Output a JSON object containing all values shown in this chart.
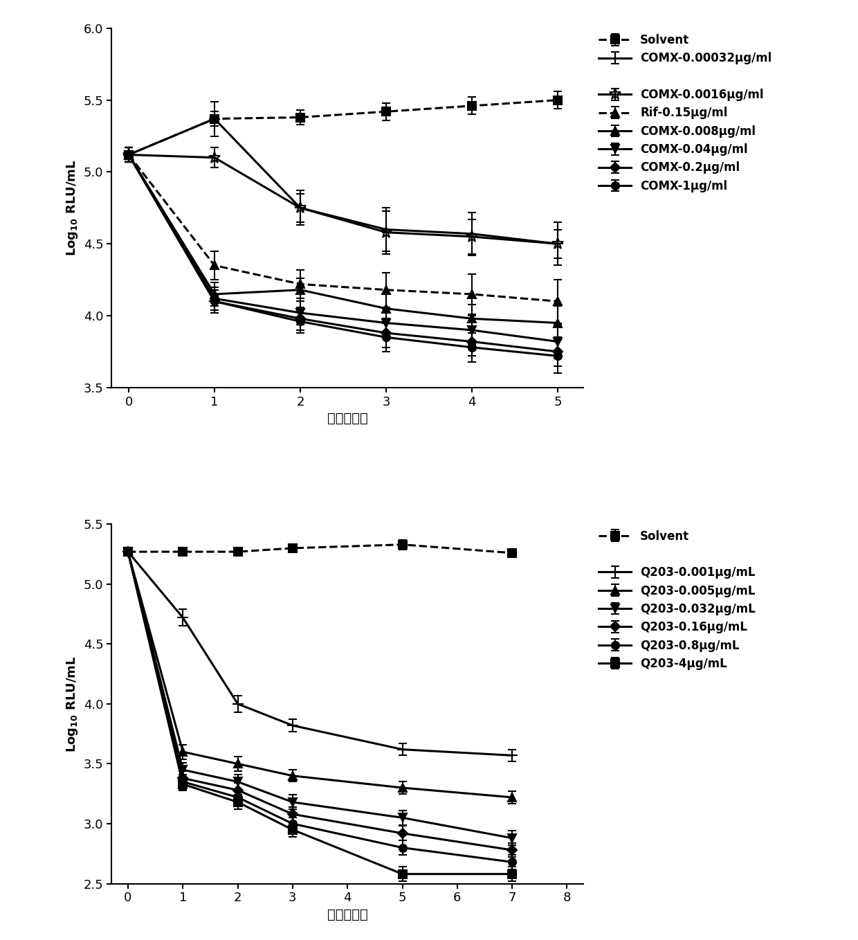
{
  "top": {
    "xlabel": "时间（天）",
    "xlim": [
      -0.2,
      5.3
    ],
    "ylim": [
      3.5,
      6.0
    ],
    "xticks": [
      0,
      1,
      2,
      3,
      4,
      5
    ],
    "yticks": [
      3.5,
      4.0,
      4.5,
      5.0,
      5.5,
      6.0
    ],
    "series": [
      {
        "label": "Solvent",
        "x": [
          0,
          1,
          2,
          3,
          4,
          5
        ],
        "y": [
          5.12,
          5.37,
          5.38,
          5.42,
          5.46,
          5.5
        ],
        "yerr": [
          0.05,
          0.05,
          0.05,
          0.06,
          0.06,
          0.06
        ],
        "marker": "s",
        "linestyle": "--",
        "markersize": 9,
        "linewidth": 2.2,
        "group": 1
      },
      {
        "label": "COMX-0.00032μg/ml",
        "x": [
          0,
          1,
          2,
          3,
          4,
          5
        ],
        "y": [
          5.12,
          5.37,
          4.75,
          4.6,
          4.57,
          4.5
        ],
        "yerr": [
          0.05,
          0.12,
          0.12,
          0.15,
          0.15,
          0.15
        ],
        "marker": "+",
        "linestyle": "-",
        "markersize": 12,
        "linewidth": 2.2,
        "group": 1
      },
      {
        "label": "COMX-0.0016μg/ml",
        "x": [
          0,
          1,
          2,
          3,
          4,
          5
        ],
        "y": [
          5.12,
          5.1,
          4.75,
          4.58,
          4.55,
          4.5
        ],
        "yerr": [
          0.05,
          0.07,
          0.1,
          0.15,
          0.12,
          0.1
        ],
        "marker": "*",
        "linestyle": "-",
        "markersize": 12,
        "linewidth": 2.2,
        "group": 2
      },
      {
        "label": "Rif-0.15μg/ml",
        "x": [
          0,
          1,
          2,
          3,
          4,
          5
        ],
        "y": [
          5.12,
          4.35,
          4.22,
          4.18,
          4.15,
          4.1
        ],
        "yerr": [
          0.05,
          0.1,
          0.1,
          0.12,
          0.14,
          0.15
        ],
        "marker": "^",
        "linestyle": "--",
        "markersize": 9,
        "linewidth": 2.2,
        "group": 2
      },
      {
        "label": "COMX-0.008μg/ml",
        "x": [
          0,
          1,
          2,
          3,
          4,
          5
        ],
        "y": [
          5.12,
          4.15,
          4.18,
          4.05,
          3.98,
          3.95
        ],
        "yerr": [
          0.05,
          0.08,
          0.08,
          0.1,
          0.1,
          0.12
        ],
        "marker": "^",
        "linestyle": "-",
        "markersize": 9,
        "linewidth": 2.2,
        "group": 2
      },
      {
        "label": "COMX-0.04μg/ml",
        "x": [
          0,
          1,
          2,
          3,
          4,
          5
        ],
        "y": [
          5.12,
          4.12,
          4.02,
          3.95,
          3.9,
          3.82
        ],
        "yerr": [
          0.05,
          0.08,
          0.08,
          0.1,
          0.1,
          0.12
        ],
        "marker": "v",
        "linestyle": "-",
        "markersize": 9,
        "linewidth": 2.2,
        "group": 2
      },
      {
        "label": "COMX-0.2μg/ml",
        "x": [
          0,
          1,
          2,
          3,
          4,
          5
        ],
        "y": [
          5.12,
          4.1,
          3.98,
          3.88,
          3.82,
          3.75
        ],
        "yerr": [
          0.05,
          0.08,
          0.08,
          0.1,
          0.1,
          0.1
        ],
        "marker": "D",
        "linestyle": "-",
        "markersize": 7,
        "linewidth": 2.2,
        "group": 2
      },
      {
        "label": "COMX-1μg/ml",
        "x": [
          0,
          1,
          2,
          3,
          4,
          5
        ],
        "y": [
          5.12,
          4.1,
          3.96,
          3.85,
          3.78,
          3.72
        ],
        "yerr": [
          0.05,
          0.08,
          0.08,
          0.1,
          0.1,
          0.12
        ],
        "marker": "o",
        "linestyle": "-",
        "markersize": 8,
        "linewidth": 2.2,
        "group": 2
      }
    ],
    "legend_groups": [
      [
        "Solvent",
        "COMX-0.00032μg/ml"
      ],
      [
        "COMX-0.0016μg/ml",
        "Rif-0.15μg/ml",
        "COMX-0.008μg/ml",
        "COMX-0.04μg/ml",
        "COMX-0.2μg/ml",
        "COMX-1μg/ml"
      ]
    ]
  },
  "bottom": {
    "xlabel": "时间（天）",
    "xlim": [
      -0.3,
      8.3
    ],
    "ylim": [
      2.5,
      5.5
    ],
    "xticks": [
      0,
      1,
      2,
      3,
      4,
      5,
      6,
      7,
      8
    ],
    "yticks": [
      2.5,
      3.0,
      3.5,
      4.0,
      4.5,
      5.0,
      5.5
    ],
    "series": [
      {
        "label": "Solvent",
        "x": [
          0,
          1,
          2,
          3,
          5,
          7
        ],
        "y": [
          5.27,
          5.27,
          5.27,
          5.3,
          5.33,
          5.26
        ],
        "yerr": [
          0.03,
          0.03,
          0.03,
          0.03,
          0.04,
          0.03
        ],
        "marker": "s",
        "linestyle": "--",
        "markersize": 9,
        "linewidth": 2.2,
        "group": 1
      },
      {
        "label": "Q203-0.001μg/mL",
        "x": [
          0,
          1,
          2,
          3,
          5,
          7
        ],
        "y": [
          5.27,
          4.72,
          4.0,
          3.82,
          3.62,
          3.57
        ],
        "yerr": [
          0.03,
          0.07,
          0.07,
          0.05,
          0.05,
          0.05
        ],
        "marker": "+",
        "linestyle": "-",
        "markersize": 12,
        "linewidth": 2.2,
        "group": 2
      },
      {
        "label": "Q203-0.005μg/mL",
        "x": [
          0,
          1,
          2,
          3,
          5,
          7
        ],
        "y": [
          5.27,
          3.6,
          3.5,
          3.4,
          3.3,
          3.22
        ],
        "yerr": [
          0.03,
          0.06,
          0.06,
          0.05,
          0.05,
          0.05
        ],
        "marker": "^",
        "linestyle": "-",
        "markersize": 9,
        "linewidth": 2.2,
        "group": 2
      },
      {
        "label": "Q203-0.032μg/mL",
        "x": [
          0,
          1,
          2,
          3,
          5,
          7
        ],
        "y": [
          5.27,
          3.45,
          3.35,
          3.18,
          3.05,
          2.88
        ],
        "yerr": [
          0.03,
          0.06,
          0.06,
          0.06,
          0.06,
          0.06
        ],
        "marker": "v",
        "linestyle": "-",
        "markersize": 9,
        "linewidth": 2.2,
        "group": 2
      },
      {
        "label": "Q203-0.16μg/mL",
        "x": [
          0,
          1,
          2,
          3,
          5,
          7
        ],
        "y": [
          5.27,
          3.38,
          3.28,
          3.08,
          2.92,
          2.78
        ],
        "yerr": [
          0.03,
          0.06,
          0.06,
          0.06,
          0.06,
          0.06
        ],
        "marker": "D",
        "linestyle": "-",
        "markersize": 7,
        "linewidth": 2.2,
        "group": 2
      },
      {
        "label": "Q203-0.8μg/mL",
        "x": [
          0,
          1,
          2,
          3,
          5,
          7
        ],
        "y": [
          5.27,
          3.35,
          3.22,
          3.0,
          2.8,
          2.68
        ],
        "yerr": [
          0.03,
          0.06,
          0.06,
          0.05,
          0.06,
          0.06
        ],
        "marker": "o",
        "linestyle": "-",
        "markersize": 8,
        "linewidth": 2.2,
        "group": 2
      },
      {
        "label": "Q203-4μg/mL",
        "x": [
          0,
          1,
          2,
          3,
          5,
          7
        ],
        "y": [
          5.27,
          3.33,
          3.18,
          2.95,
          2.58,
          2.58
        ],
        "yerr": [
          0.03,
          0.05,
          0.06,
          0.06,
          0.06,
          0.06
        ],
        "marker": "s",
        "linestyle": "-",
        "markersize": 9,
        "linewidth": 2.2,
        "group": 2
      }
    ],
    "legend_groups": [
      [
        "Solvent"
      ],
      [
        "Q203-0.001μg/mL",
        "Q203-0.005μg/mL",
        "Q203-0.032μg/mL",
        "Q203-0.16μg/mL",
        "Q203-0.8μg/mL",
        "Q203-4μg/mL"
      ]
    ]
  }
}
